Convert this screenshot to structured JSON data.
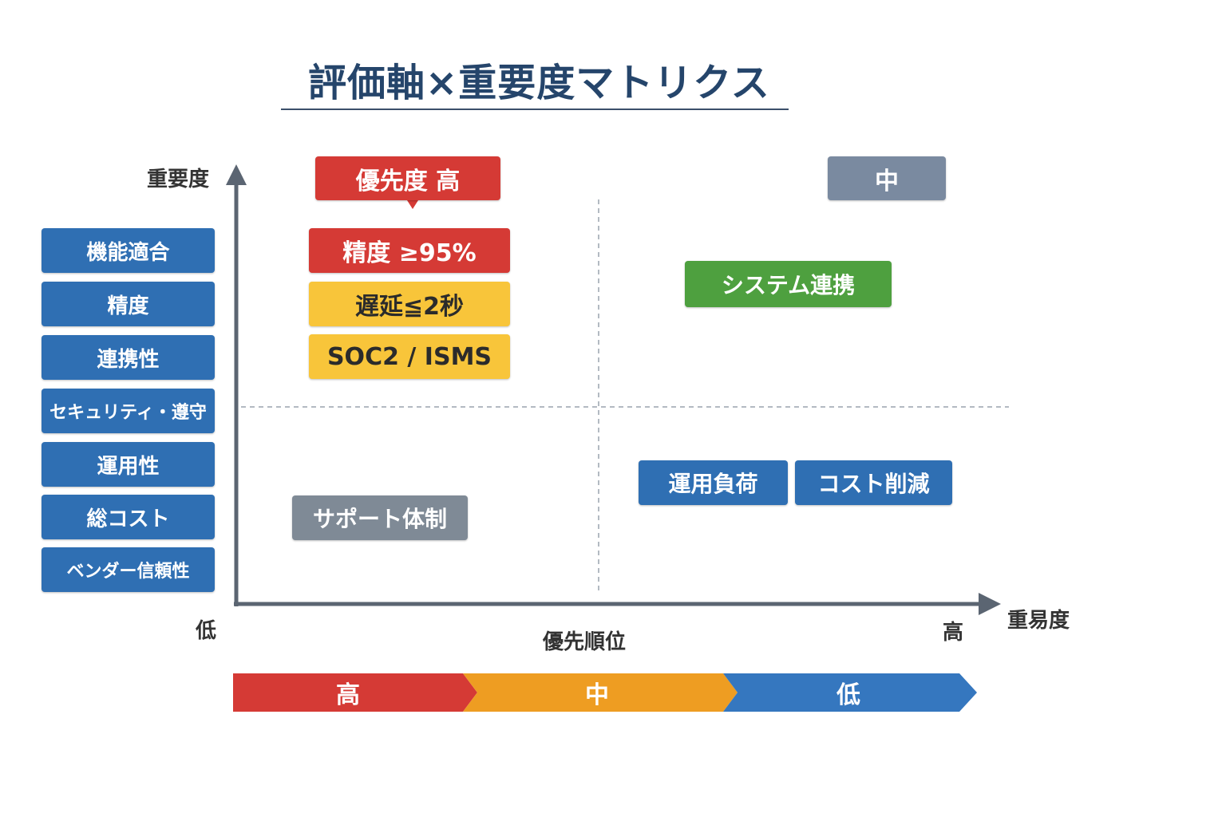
{
  "title": "評価軸×重要度マトリクス",
  "axis": {
    "y_label": "重要度",
    "x_label": "重易度",
    "low_label": "低",
    "high_label": "高",
    "x_caption": "優先順位"
  },
  "criteria": [
    "機能適合",
    "精度",
    "連携性",
    "セキュリティ・遵守",
    "運用性",
    "総コスト",
    "ベンダー信頼性"
  ],
  "badges": {
    "priority_high": "優先度 高",
    "mid": "中"
  },
  "quadrant_items": {
    "accuracy": "精度 ≥95%",
    "latency": "遅延≦2秒",
    "security": "SOC2 / ISMS",
    "system_integration": "システム連携",
    "support": "サポート体制",
    "ops_load": "運用負荷",
    "cost_reduction": "コスト削減"
  },
  "priority_band": [
    "高",
    "中",
    "低"
  ],
  "colors": {
    "criteria_blue": "#2f6fb3",
    "red": "#d53a35",
    "yellow": "#f8c53a",
    "green": "#4ea03f",
    "gray": "#7f8a96",
    "gray_badge": "#7a8aa0",
    "orange": "#ee9d22",
    "band_blue": "#3577bf",
    "axis": "#5b6572",
    "title": "#25456b"
  }
}
